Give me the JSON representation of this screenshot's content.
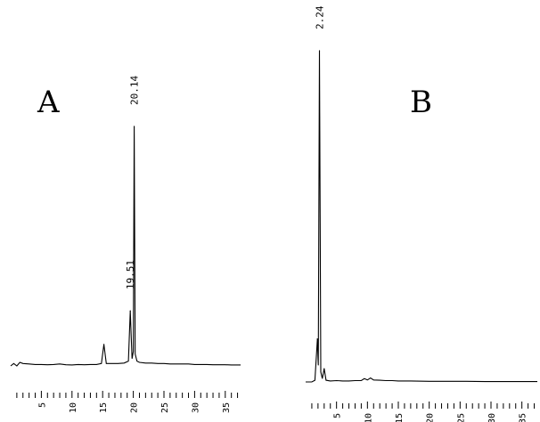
{
  "chart_data": [
    {
      "type": "line",
      "panel_label": "A",
      "xlim": [
        0,
        37.5
      ],
      "x_ticks": [
        5,
        10,
        15,
        20,
        25,
        30,
        35
      ],
      "peaks": [
        {
          "rt": 15.2,
          "height": 0.09
        },
        {
          "rt": 19.51,
          "height": 0.23,
          "label": "19.51"
        },
        {
          "rt": 20.14,
          "height": 1.0,
          "label": "20.14"
        }
      ],
      "x": [
        0.0,
        0.5,
        1.0,
        1.5,
        2.0,
        3.0,
        4.0,
        5.0,
        6.0,
        7.0,
        8.0,
        9.0,
        10.0,
        11.0,
        12.0,
        13.0,
        14.0,
        14.8,
        15.2,
        15.6,
        16.5,
        17.5,
        18.5,
        19.2,
        19.51,
        19.8,
        20.0,
        20.14,
        20.3,
        20.6,
        21.0,
        22.0,
        23.0,
        24.0,
        25.0,
        26.0,
        27.0,
        28.0,
        29.0,
        30.0,
        31.0,
        32.0,
        33.0,
        34.0,
        35.0,
        36.0,
        37.0,
        37.5
      ],
      "y": [
        0.0,
        0.01,
        0.0,
        0.015,
        0.01,
        0.008,
        0.006,
        0.006,
        0.005,
        0.006,
        0.008,
        0.005,
        0.004,
        0.006,
        0.005,
        0.006,
        0.006,
        0.01,
        0.09,
        0.01,
        0.01,
        0.01,
        0.012,
        0.02,
        0.23,
        0.03,
        0.06,
        1.0,
        0.05,
        0.02,
        0.015,
        0.012,
        0.012,
        0.01,
        0.01,
        0.008,
        0.008,
        0.008,
        0.008,
        0.006,
        0.006,
        0.006,
        0.005,
        0.005,
        0.005,
        0.004,
        0.004,
        0.004
      ]
    },
    {
      "type": "line",
      "panel_label": "B",
      "xlim": [
        0,
        37.5
      ],
      "x_ticks": [
        5,
        10,
        15,
        20,
        25,
        30,
        35
      ],
      "peaks": [
        {
          "rt": 2.24,
          "height": 1.0,
          "label": "2.24"
        },
        {
          "rt": 1.9,
          "height": 0.13
        },
        {
          "rt": 3.0,
          "height": 0.04
        }
      ],
      "x": [
        0.0,
        0.5,
        1.0,
        1.5,
        1.9,
        2.05,
        2.24,
        2.45,
        2.7,
        3.0,
        3.3,
        4.0,
        5.0,
        6.0,
        7.0,
        8.0,
        9.0,
        9.5,
        10.0,
        10.5,
        11.0,
        12.0,
        13.0,
        14.0,
        15.0,
        17.0,
        20.0,
        23.0,
        26.0,
        29.0,
        32.0,
        35.0,
        37.5
      ],
      "y": [
        0.0,
        0.0,
        0.0,
        0.005,
        0.13,
        0.05,
        1.0,
        0.03,
        0.01,
        0.04,
        0.005,
        0.003,
        0.004,
        0.003,
        0.003,
        0.004,
        0.004,
        0.01,
        0.006,
        0.012,
        0.006,
        0.005,
        0.004,
        0.004,
        0.003,
        0.003,
        0.002,
        0.002,
        0.002,
        0.001,
        0.001,
        0.001,
        0.001
      ]
    }
  ]
}
